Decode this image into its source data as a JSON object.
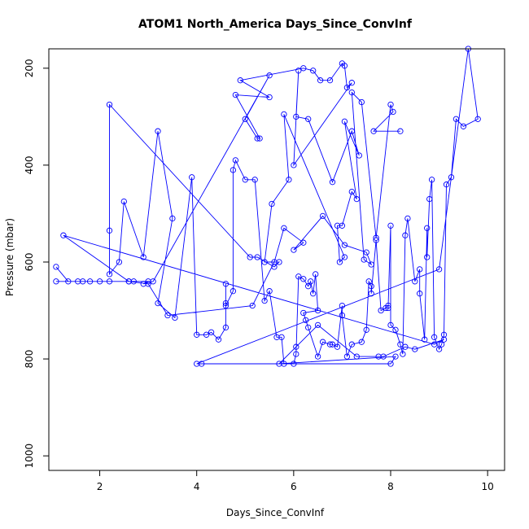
{
  "chart_data": {
    "type": "scatter",
    "title": "ATOM1 North_America Days_Since_ConvInf",
    "xlabel": "Days_Since_ConvInf",
    "ylabel": "Pressure (mbar)",
    "xlim": [
      0.95,
      10.35
    ],
    "ylim": [
      1030,
      160
    ],
    "y_reversed": true,
    "x_ticks": [
      2,
      4,
      6,
      8,
      10
    ],
    "y_ticks": [
      200,
      400,
      600,
      800,
      1000
    ],
    "grid": false,
    "legend": "none",
    "color": "#0000ff",
    "series": [
      {
        "points": [
          [
            1.1,
            610
          ],
          [
            1.35,
            640
          ],
          [
            1.1,
            640
          ],
          [
            1.55,
            640
          ],
          [
            1.65,
            640
          ],
          [
            1.8,
            640
          ],
          [
            2.0,
            640
          ],
          [
            2.2,
            640
          ],
          [
            2.6,
            640
          ],
          [
            2.7,
            640
          ],
          [
            3.0,
            640
          ],
          [
            2.9,
            645
          ],
          [
            3.1,
            640
          ],
          [
            5.5,
            215
          ],
          [
            5.0,
            305
          ],
          [
            5.25,
            345
          ],
          [
            5.3,
            345
          ],
          [
            4.8,
            255
          ],
          [
            5.5,
            260
          ],
          [
            4.9,
            225
          ],
          [
            6.2,
            200
          ],
          [
            6.4,
            205
          ],
          [
            6.55,
            225
          ],
          [
            6.75,
            225
          ],
          [
            7.0,
            190
          ],
          [
            7.05,
            195
          ],
          [
            7.1,
            240
          ],
          [
            7.2,
            230
          ],
          [
            6.0,
            400
          ],
          [
            6.1,
            205
          ],
          [
            6.05,
            300
          ],
          [
            6.3,
            305
          ],
          [
            6.8,
            435
          ],
          [
            7.2,
            330
          ],
          [
            7.35,
            380
          ],
          [
            7.05,
            310
          ],
          [
            7.3,
            470
          ],
          [
            7.2,
            455
          ],
          [
            7.0,
            525
          ],
          [
            6.9,
            525
          ],
          [
            6.95,
            600
          ],
          [
            7.05,
            590
          ],
          [
            5.8,
            295
          ],
          [
            5.9,
            430
          ],
          [
            5.55,
            480
          ],
          [
            5.4,
            600
          ],
          [
            5.7,
            600
          ],
          [
            5.6,
            610
          ],
          [
            5.25,
            590
          ],
          [
            5.1,
            590
          ],
          [
            2.2,
            275
          ],
          [
            2.2,
            535
          ],
          [
            2.2,
            625
          ],
          [
            2.4,
            600
          ],
          [
            2.5,
            475
          ],
          [
            2.9,
            590
          ],
          [
            3.2,
            330
          ],
          [
            3.5,
            510
          ],
          [
            3.2,
            685
          ],
          [
            3.55,
            715
          ],
          [
            3.9,
            425
          ],
          [
            4.0,
            750
          ],
          [
            4.2,
            750
          ],
          [
            4.3,
            745
          ],
          [
            4.45,
            760
          ],
          [
            4.6,
            735
          ],
          [
            4.6,
            645
          ],
          [
            4.6,
            685
          ],
          [
            4.6,
            690
          ],
          [
            4.75,
            660
          ],
          [
            4.75,
            410
          ],
          [
            4.8,
            390
          ],
          [
            5.0,
            430
          ],
          [
            5.2,
            430
          ],
          [
            5.4,
            680
          ],
          [
            5.5,
            660
          ],
          [
            5.65,
            755
          ],
          [
            5.75,
            755
          ],
          [
            5.8,
            810
          ],
          [
            6.0,
            810
          ],
          [
            6.05,
            790
          ],
          [
            6.1,
            630
          ],
          [
            6.2,
            635
          ],
          [
            6.3,
            650
          ],
          [
            6.35,
            640
          ],
          [
            6.4,
            665
          ],
          [
            6.45,
            625
          ],
          [
            6.5,
            700
          ],
          [
            6.2,
            705
          ],
          [
            6.25,
            720
          ],
          [
            6.3,
            735
          ],
          [
            6.5,
            795
          ],
          [
            6.6,
            765
          ],
          [
            6.75,
            770
          ],
          [
            6.8,
            770
          ],
          [
            6.9,
            775
          ],
          [
            7.0,
            690
          ],
          [
            7.0,
            710
          ],
          [
            7.1,
            795
          ],
          [
            7.2,
            770
          ],
          [
            7.4,
            765
          ],
          [
            7.5,
            740
          ],
          [
            7.55,
            640
          ],
          [
            7.6,
            650
          ],
          [
            7.6,
            665
          ],
          [
            7.7,
            555
          ],
          [
            7.8,
            700
          ],
          [
            7.9,
            695
          ],
          [
            7.95,
            695
          ],
          [
            7.95,
            690
          ],
          [
            8.0,
            525
          ],
          [
            8.0,
            730
          ],
          [
            8.1,
            740
          ],
          [
            8.2,
            770
          ],
          [
            8.25,
            790
          ],
          [
            8.3,
            545
          ],
          [
            8.35,
            510
          ],
          [
            8.5,
            640
          ],
          [
            8.6,
            615
          ],
          [
            8.6,
            665
          ],
          [
            8.7,
            760
          ],
          [
            8.75,
            530
          ],
          [
            8.75,
            590
          ],
          [
            8.8,
            470
          ],
          [
            8.85,
            430
          ],
          [
            8.9,
            755
          ],
          [
            9.0,
            780
          ],
          [
            9.05,
            770
          ],
          [
            9.1,
            750
          ],
          [
            9.15,
            440
          ],
          [
            9.25,
            425
          ],
          [
            9.35,
            305
          ],
          [
            9.5,
            320
          ],
          [
            9.8,
            305
          ],
          [
            9.6,
            160
          ],
          [
            9.0,
            615
          ],
          [
            4.0,
            810
          ],
          [
            4.1,
            810
          ],
          [
            8.0,
            810
          ],
          [
            8.1,
            795
          ],
          [
            5.7,
            810
          ],
          [
            6.05,
            775
          ],
          [
            6.5,
            730
          ],
          [
            7.3,
            795
          ],
          [
            7.75,
            795
          ],
          [
            7.85,
            795
          ],
          [
            8.3,
            775
          ],
          [
            8.5,
            780
          ],
          [
            9.1,
            760
          ],
          [
            8.9,
            770
          ],
          [
            1.25,
            545
          ],
          [
            2.6,
            640
          ],
          [
            3.0,
            645
          ],
          [
            3.4,
            710
          ],
          [
            5.15,
            690
          ],
          [
            5.6,
            600
          ],
          [
            5.8,
            530
          ],
          [
            6.2,
            560
          ],
          [
            6.0,
            575
          ],
          [
            6.6,
            505
          ],
          [
            7.05,
            565
          ],
          [
            7.5,
            580
          ],
          [
            7.6,
            605
          ],
          [
            7.45,
            595
          ],
          [
            7.2,
            250
          ],
          [
            7.4,
            270
          ],
          [
            7.7,
            550
          ],
          [
            8.0,
            275
          ],
          [
            8.05,
            290
          ],
          [
            7.65,
            330
          ],
          [
            8.2,
            330
          ]
        ]
      }
    ]
  }
}
